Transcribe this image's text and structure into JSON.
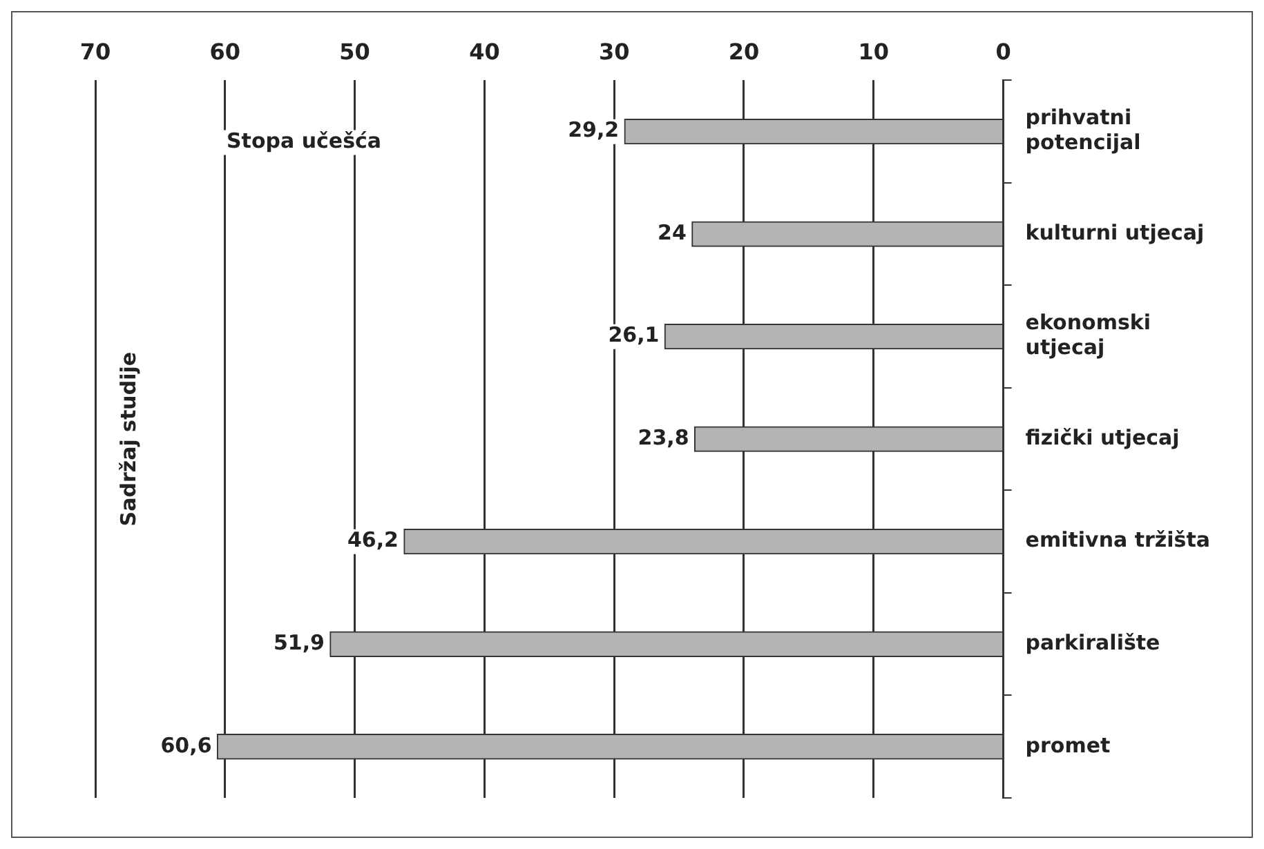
{
  "chart_data": {
    "type": "bar",
    "orientation": "horizontal",
    "xlabel": "Stopa učešća",
    "ylabel": "Sadržaj studije",
    "categories": [
      "prihvatni potencijal",
      "kulturni utjecaj",
      "ekonomski utjecaj",
      "fizički utjecaj",
      "emitivna tržišta",
      "parkiralište",
      "promet"
    ],
    "values": [
      29.2,
      24,
      26.1,
      23.8,
      46.2,
      51.9,
      60.6
    ],
    "value_labels": [
      "29,2",
      "24",
      "26,1",
      "23,8",
      "46,2",
      "51,9",
      "60,6"
    ],
    "color": "#b4b4b4",
    "xlim": [
      70,
      0
    ],
    "xticks": [
      70,
      60,
      50,
      40,
      30,
      20,
      10,
      0
    ],
    "grid": "x",
    "legend": false
  }
}
